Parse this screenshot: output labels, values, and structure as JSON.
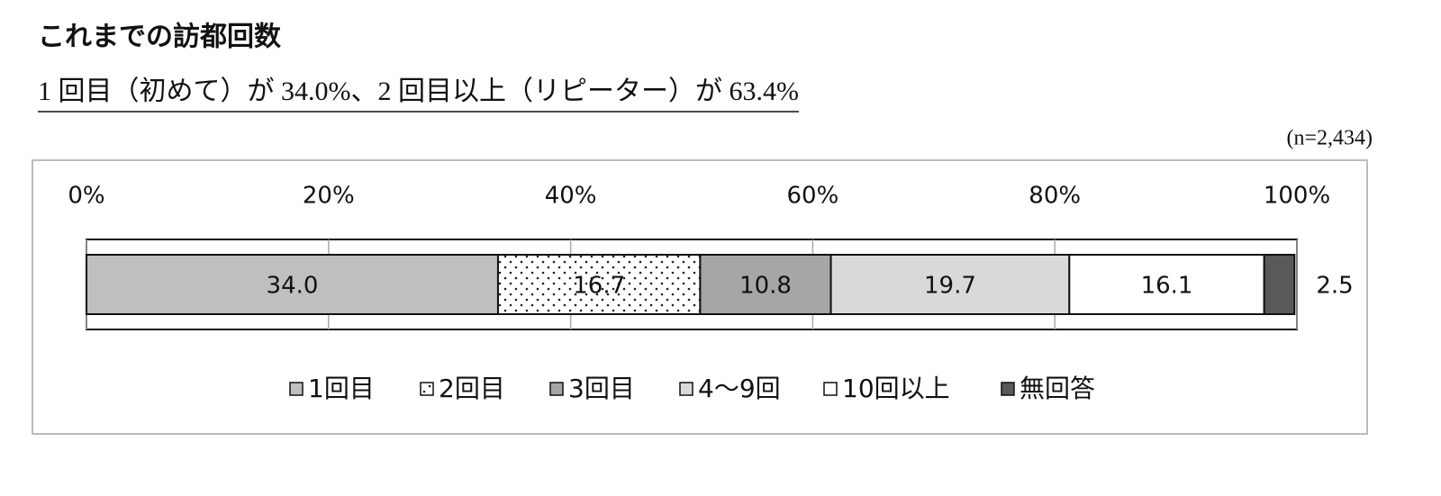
{
  "chart_data": {
    "type": "stacked-bar-horizontal",
    "title": "これまでの訪都回数",
    "subtitle": "1 回目（初めて）が 34.0%、2 回目以上（リピーター）が 63.4%",
    "note": "(n=2,434)",
    "xlim": [
      0,
      100
    ],
    "xticks": [
      {
        "value": 0,
        "label": "0%"
      },
      {
        "value": 20,
        "label": "20%"
      },
      {
        "value": 40,
        "label": "40%"
      },
      {
        "value": 60,
        "label": "60%"
      },
      {
        "value": 80,
        "label": "80%"
      },
      {
        "value": 100,
        "label": "100%"
      }
    ],
    "grid": true,
    "legend": "bottom",
    "series": [
      {
        "name": "1回目",
        "color": "#bfbfbf",
        "values": [
          34.0
        ],
        "value_labels": [
          "34.0"
        ]
      },
      {
        "name": "2回目",
        "color": "#ffffff",
        "pattern": "dots",
        "values": [
          16.7
        ],
        "value_labels": [
          "16.7"
        ]
      },
      {
        "name": "3回目",
        "color": "#a6a6a6",
        "values": [
          10.8
        ],
        "value_labels": [
          "10.8"
        ]
      },
      {
        "name": "4〜9回",
        "color": "#d9d9d9",
        "values": [
          19.7
        ],
        "value_labels": [
          "19.7"
        ]
      },
      {
        "name": "10回以上",
        "color": "#ffffff",
        "values": [
          16.1
        ],
        "value_labels": [
          "16.1"
        ]
      },
      {
        "name": "無回答",
        "color": "#595959",
        "values": [
          2.5
        ],
        "value_labels": [
          "2.5"
        ]
      }
    ]
  }
}
